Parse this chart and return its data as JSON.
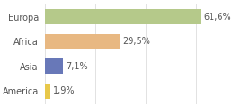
{
  "categories": [
    "Europa",
    "Africa",
    "Asia",
    "America"
  ],
  "values": [
    61.6,
    29.5,
    7.1,
    1.9
  ],
  "labels": [
    "61,6%",
    "29,5%",
    "7,1%",
    "1,9%"
  ],
  "bar_colors": [
    "#b5c98a",
    "#e8b882",
    "#6878b8",
    "#e8c84a"
  ],
  "background_color": "#ffffff",
  "grid_color": "#dddddd",
  "xlim": [
    0,
    80
  ],
  "bar_height": 0.62,
  "label_fontsize": 7.0,
  "ytick_fontsize": 7.0,
  "text_color": "#555555"
}
